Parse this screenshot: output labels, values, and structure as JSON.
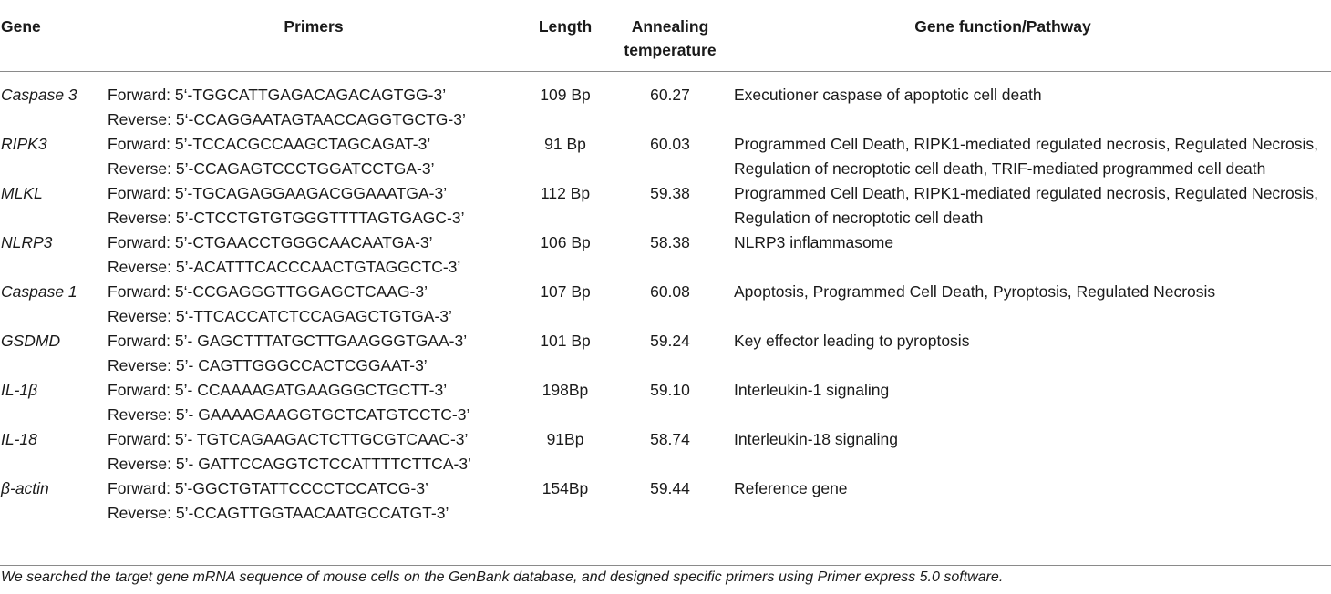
{
  "table": {
    "headers": {
      "gene": "Gene",
      "primers": "Primers",
      "length": "Length",
      "annealing_line1": "Annealing",
      "annealing_line2": "temperature",
      "function": "Gene function/Pathway"
    },
    "rows": [
      {
        "gene": "Caspase 3",
        "forward": "Forward: 5‘-TGGCATTGAGACAGACAGTGG-3’",
        "reverse": "Reverse: 5‘-CCAGGAATAGTAACCAGGTGCTG-3’",
        "length": "109 Bp",
        "temp": "60.27",
        "function": "Executioner caspase of apoptotic cell death"
      },
      {
        "gene": "RIPK3",
        "forward": "Forward: 5’-TCCACGCCAAGCTAGCAGAT-3’",
        "reverse": "Reverse: 5’-CCAGAGTCCCTGGATCCTGA-3’",
        "length": "91 Bp",
        "temp": "60.03",
        "function": "Programmed Cell Death, RIPK1-mediated regulated necrosis, Regulated Necrosis, Regulation of necroptotic cell death, TRIF-mediated programmed cell death"
      },
      {
        "gene": "MLKL",
        "forward": "Forward: 5’-TGCAGAGGAAGACGGAAATGA-3’",
        "reverse": "Reverse: 5’-CTCCTGTGTGGGTTTTAGTGAGC-3’",
        "length": "112 Bp",
        "temp": "59.38",
        "function": "Programmed Cell Death, RIPK1-mediated regulated necrosis, Regulated Necrosis, Regulation of necroptotic cell death"
      },
      {
        "gene": "NLRP3",
        "forward": "Forward: 5’-CTGAACCTGGGCAACAATGA-3’",
        "reverse": "Reverse: 5’-ACATTTCACCCAACTGTAGGCTC-3’",
        "length": "106 Bp",
        "temp": "58.38",
        "function": "NLRP3 inflammasome"
      },
      {
        "gene": "Caspase 1",
        "forward": "Forward: 5‘-CCGAGGGTTGGAGCTCAAG-3’",
        "reverse": "Reverse: 5‘-TTCACCATCTCCAGAGCTGTGA-3’",
        "length": "107 Bp",
        "temp": "60.08",
        "function": "Apoptosis, Programmed Cell Death, Pyroptosis, Regulated Necrosis"
      },
      {
        "gene": "GSDMD",
        "forward": "Forward: 5’- GAGCTTTATGCTTGAAGGGTGAA-3’",
        "reverse": "Reverse: 5’- CAGTTGGGCCACTCGGAAT-3’",
        "length": "101 Bp",
        "temp": "59.24",
        "function": "Key effector leading to pyroptosis"
      },
      {
        "gene": "IL-1β",
        "forward": "Forward: 5’- CCAAAAGATGAAGGGCTGCTT-3’",
        "reverse": "Reverse: 5’- GAAAAGAAGGTGCTCATGTCCTC-3’",
        "length": "198Bp",
        "temp": "59.10",
        "function": "Interleukin-1 signaling"
      },
      {
        "gene": "IL-18",
        "forward": "Forward: 5’- TGTCAGAAGACTCTTGCGTCAAC-3’",
        "reverse": "Reverse: 5’- GATTCCAGGTCTCCATTTTCTTCA-3’",
        "length": "91Bp",
        "temp": "58.74",
        "function": "Interleukin-18 signaling"
      },
      {
        "gene": "β-actin",
        "forward": "Forward: 5’-GGCTGTATTCCCCTCCATCG-3’",
        "reverse": "Reverse: 5’-CCAGTTGGTAACAATGCCATGT-3’",
        "length": "154Bp",
        "temp": "59.44",
        "function": "Reference gene"
      }
    ]
  },
  "footnote": "We searched the target gene mRNA sequence of mouse cells on the GenBank database, and designed specific primers using Primer express 5.0 software."
}
